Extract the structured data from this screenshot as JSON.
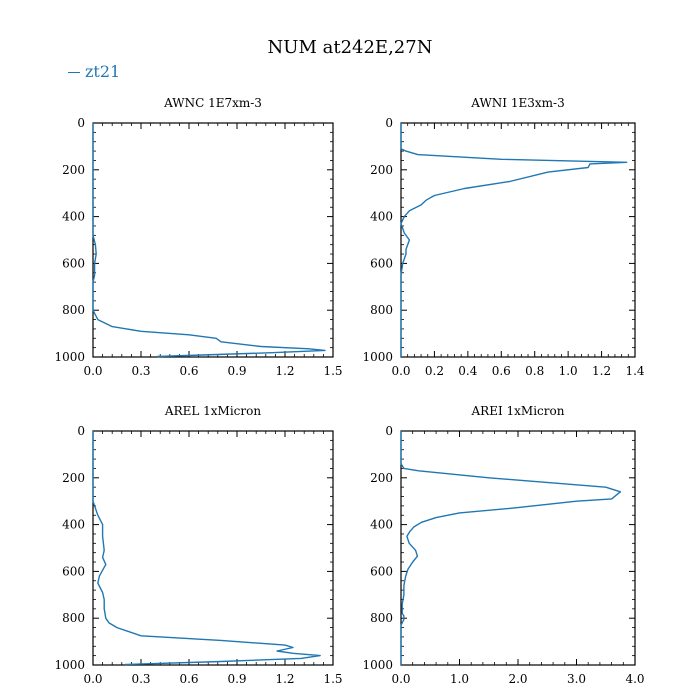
{
  "figure": {
    "title": "NUM at242E,27N",
    "legend": {
      "label": "zt21",
      "color": "#1f77b4"
    }
  },
  "chart_data": [
    {
      "type": "line",
      "title": "AWNC 1E7xm-3",
      "xlim": [
        0,
        1.5
      ],
      "ylim": [
        1000,
        0
      ],
      "x_ticks": [
        0,
        0.3,
        0.6,
        0.9,
        1.2,
        1.5
      ],
      "x_tick_labels": [
        "0.0",
        "0.3",
        "0.6",
        "0.9",
        "1.2",
        "1.5"
      ],
      "y_ticks": [
        0,
        200,
        400,
        600,
        800,
        1000
      ],
      "y_tick_labels": [
        "0",
        "200",
        "400",
        "600",
        "800",
        "1000"
      ],
      "series": [
        {
          "color": "#1f77b4",
          "points": [
            [
              0,
              0
            ],
            [
              0,
              300
            ],
            [
              0,
              480
            ],
            [
              0.015,
              520
            ],
            [
              0.02,
              560
            ],
            [
              0.01,
              600
            ],
            [
              0.01,
              650
            ],
            [
              0,
              680
            ],
            [
              0,
              800
            ],
            [
              0.03,
              840
            ],
            [
              0.12,
              870
            ],
            [
              0.3,
              890
            ],
            [
              0.6,
              905
            ],
            [
              0.77,
              920
            ],
            [
              0.8,
              935
            ],
            [
              1.05,
              955
            ],
            [
              1.35,
              965
            ],
            [
              1.45,
              972
            ],
            [
              1.1,
              982
            ],
            [
              0.4,
              998
            ]
          ]
        }
      ]
    },
    {
      "type": "line",
      "title": "AWNI 1E3xm-3",
      "xlim": [
        0,
        1.4
      ],
      "ylim": [
        1000,
        0
      ],
      "x_ticks": [
        0,
        0.2,
        0.4,
        0.6,
        0.8,
        1.0,
        1.2,
        1.4
      ],
      "x_tick_labels": [
        "0.0",
        "0.2",
        "0.4",
        "0.6",
        "0.8",
        "1.0",
        "1.2",
        "1.4"
      ],
      "y_ticks": [
        0,
        200,
        400,
        600,
        800,
        1000
      ],
      "y_tick_labels": [
        "0",
        "200",
        "400",
        "600",
        "800",
        "1000"
      ],
      "series": [
        {
          "color": "#1f77b4",
          "points": [
            [
              0,
              0
            ],
            [
              0,
              110
            ],
            [
              0.03,
              120
            ],
            [
              0.1,
              135
            ],
            [
              0.6,
              155
            ],
            [
              1.35,
              168
            ],
            [
              1.13,
              175
            ],
            [
              1.12,
              190
            ],
            [
              0.88,
              210
            ],
            [
              0.65,
              250
            ],
            [
              0.38,
              280
            ],
            [
              0.2,
              310
            ],
            [
              0.15,
              330
            ],
            [
              0.12,
              350
            ],
            [
              0.05,
              375
            ],
            [
              0.02,
              400
            ],
            [
              0,
              430
            ],
            [
              0.02,
              470
            ],
            [
              0.05,
              500
            ],
            [
              0.03,
              540
            ],
            [
              0.03,
              560
            ],
            [
              0.01,
              600
            ],
            [
              0,
              650
            ],
            [
              0,
              1000
            ]
          ]
        }
      ]
    },
    {
      "type": "line",
      "title": "AREL 1xMicron",
      "xlim": [
        0,
        1.5
      ],
      "ylim": [
        1000,
        0
      ],
      "x_ticks": [
        0,
        0.3,
        0.6,
        0.9,
        1.2,
        1.5
      ],
      "x_tick_labels": [
        "0.0",
        "0.3",
        "0.6",
        "0.9",
        "1.2",
        "1.5"
      ],
      "y_ticks": [
        0,
        200,
        400,
        600,
        800,
        1000
      ],
      "y_tick_labels": [
        "0",
        "200",
        "400",
        "600",
        "800",
        "1000"
      ],
      "series": [
        {
          "color": "#1f77b4",
          "points": [
            [
              0,
              0
            ],
            [
              0,
              300
            ],
            [
              0.03,
              360
            ],
            [
              0.06,
              400
            ],
            [
              0.06,
              450
            ],
            [
              0.07,
              510
            ],
            [
              0.06,
              540
            ],
            [
              0.08,
              570
            ],
            [
              0.04,
              620
            ],
            [
              0.03,
              650
            ],
            [
              0.06,
              690
            ],
            [
              0.07,
              720
            ],
            [
              0.07,
              760
            ],
            [
              0.08,
              800
            ],
            [
              0.1,
              820
            ],
            [
              0.15,
              840
            ],
            [
              0.3,
              875
            ],
            [
              0.8,
              895
            ],
            [
              1.2,
              915
            ],
            [
              1.25,
              925
            ],
            [
              1.15,
              940
            ],
            [
              1.25,
              950
            ],
            [
              1.42,
              960
            ],
            [
              1.3,
              972
            ],
            [
              0.8,
              985
            ],
            [
              0.2,
              998
            ]
          ]
        }
      ]
    },
    {
      "type": "line",
      "title": "AREI 1xMicron",
      "xlim": [
        0,
        4.0
      ],
      "ylim": [
        1000,
        0
      ],
      "x_ticks": [
        0,
        1.0,
        2.0,
        3.0,
        4.0
      ],
      "x_tick_labels": [
        "0.0",
        "1.0",
        "2.0",
        "3.0",
        "4.0"
      ],
      "y_ticks": [
        0,
        200,
        400,
        600,
        800,
        1000
      ],
      "y_tick_labels": [
        "0",
        "200",
        "400",
        "600",
        "800",
        "1000"
      ],
      "series": [
        {
          "color": "#1f77b4",
          "points": [
            [
              0,
              0
            ],
            [
              0,
              140
            ],
            [
              0.05,
              160
            ],
            [
              0.3,
              170
            ],
            [
              1.5,
              200
            ],
            [
              3.5,
              240
            ],
            [
              3.75,
              260
            ],
            [
              3.6,
              290
            ],
            [
              3.0,
              300
            ],
            [
              1.9,
              330
            ],
            [
              1.0,
              350
            ],
            [
              0.6,
              370
            ],
            [
              0.35,
              390
            ],
            [
              0.22,
              410
            ],
            [
              0.15,
              430
            ],
            [
              0.1,
              450
            ],
            [
              0.14,
              480
            ],
            [
              0.25,
              510
            ],
            [
              0.28,
              535
            ],
            [
              0.2,
              560
            ],
            [
              0.12,
              590
            ],
            [
              0.08,
              620
            ],
            [
              0.05,
              660
            ],
            [
              0.05,
              700
            ],
            [
              0.02,
              740
            ],
            [
              0.02,
              780
            ],
            [
              0.05,
              790
            ],
            [
              0.05,
              805
            ],
            [
              0,
              830
            ],
            [
              0,
              1000
            ]
          ]
        }
      ]
    }
  ]
}
